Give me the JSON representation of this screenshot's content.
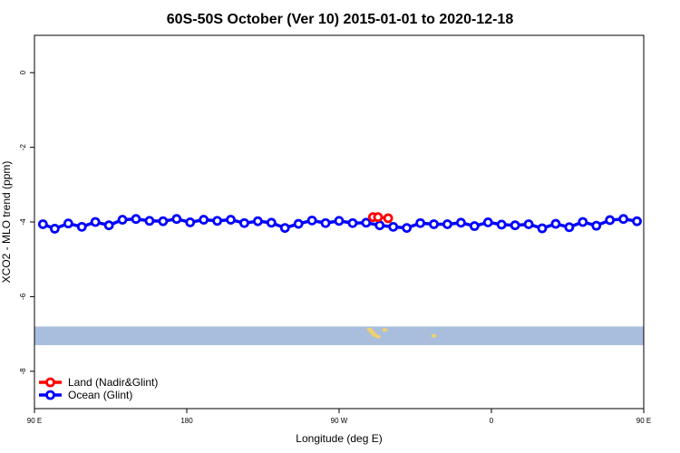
{
  "chart_data": {
    "type": "line",
    "title": "60S-50S October (Ver 10)   2015-01-01 to 2020-12-18",
    "xlabel": "Longitude (deg E)",
    "ylabel": "XCO2 - MLO trend (ppm)",
    "xlim": [
      90,
      450
    ],
    "ylim": [
      -9,
      1
    ],
    "x_ticks": [
      {
        "value": 90,
        "label": "90 E"
      },
      {
        "value": 180,
        "label": "180"
      },
      {
        "value": 270,
        "label": "90 W"
      },
      {
        "value": 360,
        "label": "0"
      },
      {
        "value": 450,
        "label": "90 E"
      },
      {
        "value": 540,
        "label": "180"
      }
    ],
    "y_ticks": [
      {
        "value": 0,
        "label": "0"
      },
      {
        "value": -2,
        "label": "-2"
      },
      {
        "value": -4,
        "label": "-4"
      },
      {
        "value": -6,
        "label": "-6"
      },
      {
        "value": -8,
        "label": "-8"
      }
    ],
    "map_strip": {
      "y_range": [
        -7.3,
        -6.8
      ],
      "ocean_color": "#a8bedc",
      "land_color": "#f0d070",
      "land_patches": [
        {
          "x": 288,
          "y": -6.88
        },
        {
          "x": 289,
          "y": -6.93
        },
        {
          "x": 290,
          "y": -6.98
        },
        {
          "x": 291,
          "y": -7.03
        },
        {
          "x": 293,
          "y": -7.07
        },
        {
          "x": 297,
          "y": -6.89
        },
        {
          "x": 326,
          "y": -7.05
        }
      ]
    },
    "series": [
      {
        "name": "Land (Nadir&Glint)",
        "color": "#ff0000",
        "x": [
          290,
          293,
          299
        ],
        "y": [
          -3.87,
          -3.87,
          -3.9
        ]
      },
      {
        "name": "Ocean (Glint)",
        "color": "#0000ff",
        "x": [
          95,
          102,
          110,
          118,
          126,
          134,
          142,
          150,
          158,
          166,
          174,
          182,
          190,
          198,
          206,
          214,
          222,
          230,
          238,
          246,
          254,
          262,
          270,
          278,
          286,
          294,
          302,
          310,
          318,
          326,
          334,
          342,
          350,
          358,
          366,
          374,
          382,
          390,
          398,
          406,
          414,
          422,
          430,
          438,
          446
        ],
        "y": [
          -4.06,
          -4.18,
          -4.04,
          -4.13,
          -4.0,
          -4.09,
          -3.94,
          -3.92,
          -3.97,
          -3.98,
          -3.92,
          -4.01,
          -3.94,
          -3.97,
          -3.94,
          -4.03,
          -3.98,
          -4.02,
          -4.16,
          -4.05,
          -3.96,
          -4.03,
          -3.97,
          -4.03,
          -4.02,
          -4.09,
          -4.13,
          -4.16,
          -4.03,
          -4.06,
          -4.06,
          -4.02,
          -4.11,
          -4.01,
          -4.07,
          -4.09,
          -4.06,
          -4.17,
          -4.05,
          -4.14,
          -4.0,
          -4.1,
          -3.95,
          -3.92,
          -3.98
        ]
      }
    ],
    "legend": {
      "position": "bottom-left",
      "entries": [
        "Land (Nadir&Glint)",
        "Ocean (Glint)"
      ]
    },
    "grid": false
  }
}
